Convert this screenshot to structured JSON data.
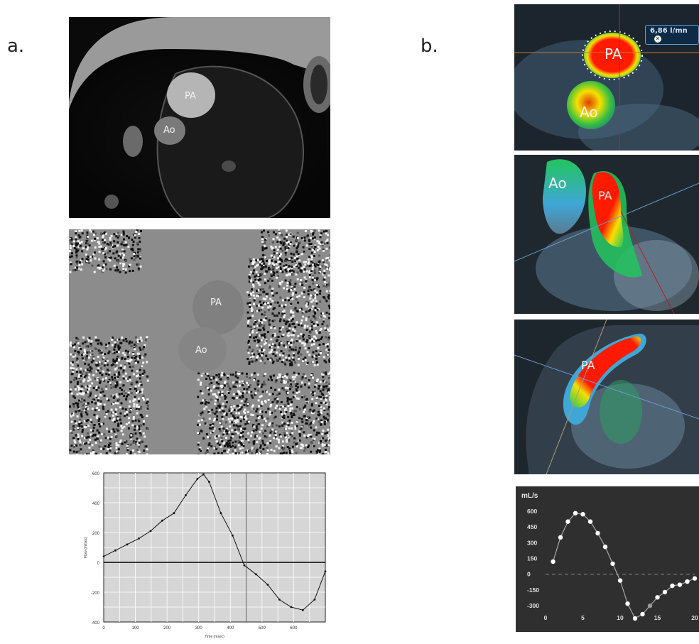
{
  "panels": {
    "a_label": "a.",
    "b_label": "b."
  },
  "vessels": {
    "pa": "PA",
    "ao": "Ao"
  },
  "flow_badge": "6,86 l/mn",
  "flow_badge_icon": "close-icon",
  "colors": {
    "chart_a_bg": "#d6d6d6",
    "chart_b_bg": "#2f2f2f",
    "flow_red": "#ff1a00",
    "flow_yellow": "#f5e000",
    "flow_green": "#22c55e",
    "flow_blue": "#3fa7d6"
  },
  "chart_data": [
    {
      "type": "line",
      "xlabel": "Time (msec)",
      "ylabel": "Flow (ml/sec)",
      "xlim": [
        0,
        700
      ],
      "ylim": [
        -400,
        600
      ],
      "xticks": [
        0,
        100,
        200,
        300,
        400,
        500,
        600
      ],
      "yticks": [
        -400,
        -200,
        0,
        200,
        400,
        600
      ],
      "grid": true,
      "marker_time": 450,
      "series": [
        {
          "x": [
            0,
            37,
            74,
            111,
            148,
            185,
            222,
            259,
            296,
            315,
            333,
            370,
            407,
            444,
            481,
            518,
            555,
            592,
            629,
            666,
            700
          ],
          "values": [
            40,
            80,
            120,
            160,
            210,
            280,
            330,
            450,
            560,
            590,
            540,
            330,
            180,
            -20,
            -80,
            -150,
            -250,
            -300,
            -320,
            -250,
            -60
          ]
        }
      ]
    },
    {
      "type": "line",
      "ylabel": "mL/s",
      "xlim": [
        0,
        20
      ],
      "ylim": [
        -380,
        700
      ],
      "xticks": [
        0,
        5,
        10,
        15,
        20
      ],
      "yticks": [
        600,
        450,
        300,
        150,
        0,
        -150,
        -300
      ],
      "zero_line": "dashed",
      "series": [
        {
          "x": [
            1,
            2,
            3,
            4,
            5,
            6,
            7,
            8,
            9,
            10,
            11,
            12,
            13,
            14,
            15,
            16,
            17,
            18,
            19,
            20
          ],
          "values": [
            120,
            350,
            500,
            580,
            570,
            500,
            390,
            260,
            100,
            -60,
            -280,
            -420,
            -380,
            -300,
            -220,
            -170,
            -110,
            -100,
            -70,
            -40
          ]
        }
      ]
    }
  ]
}
